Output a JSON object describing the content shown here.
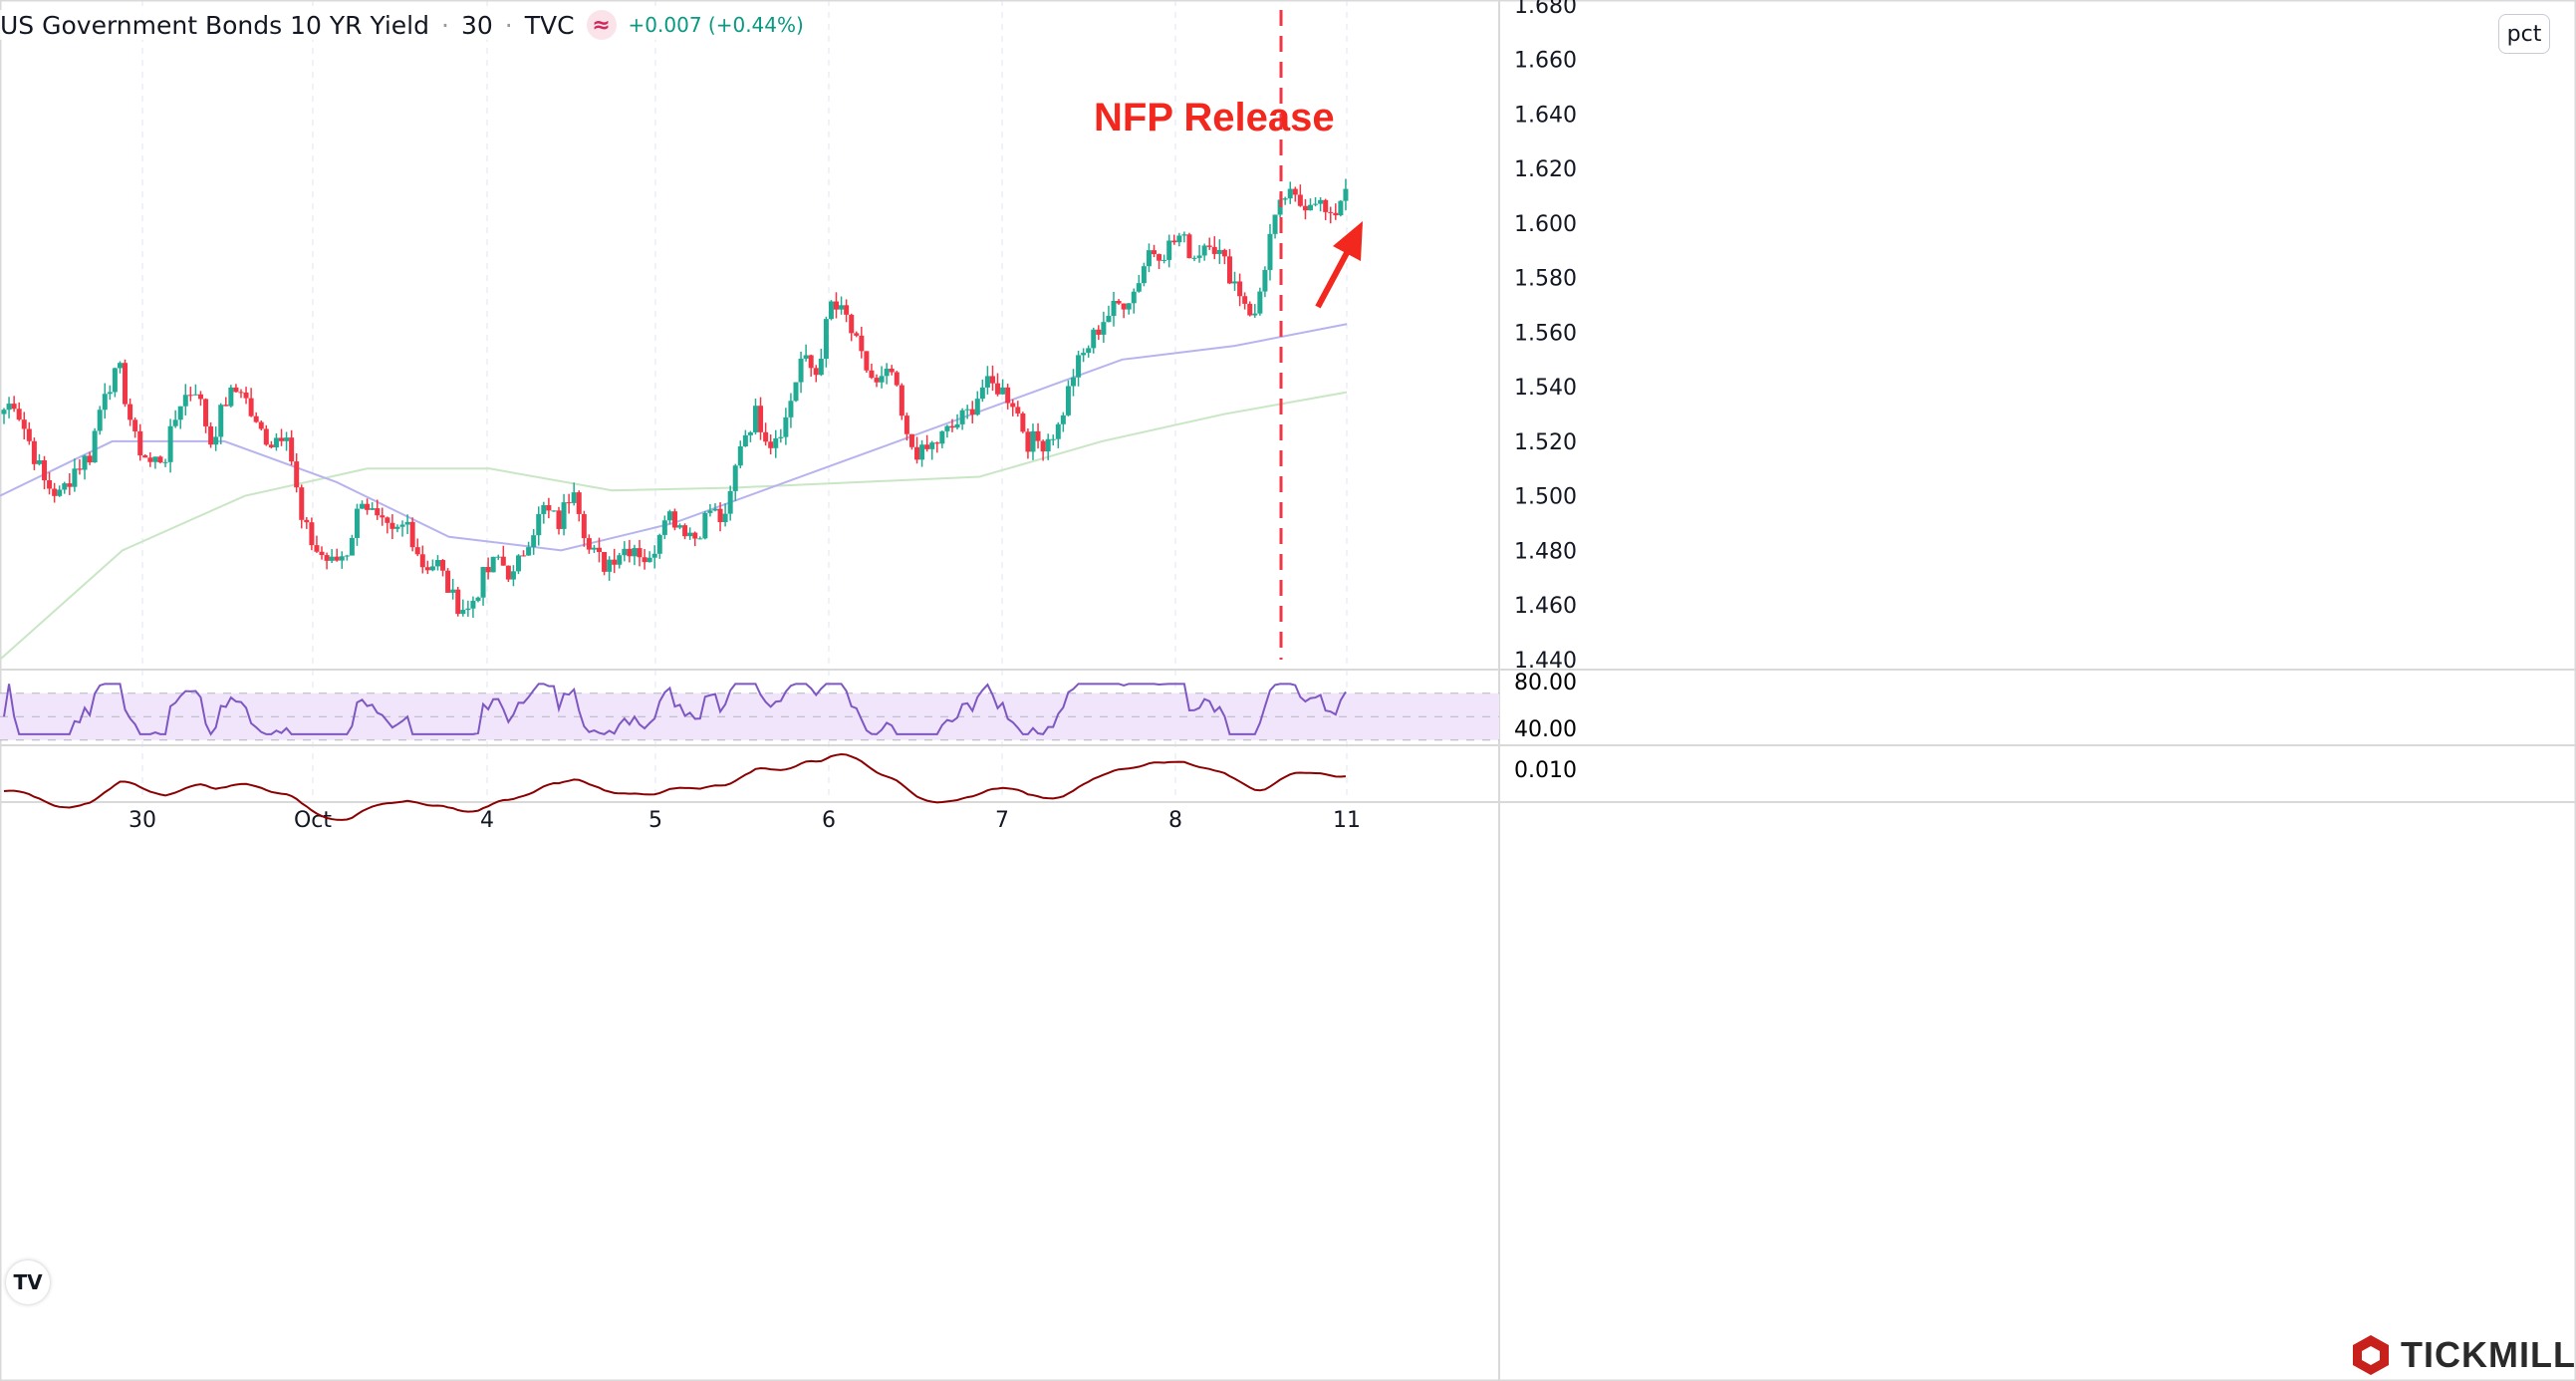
{
  "header": {
    "symbol": "US Government Bonds 10 YR Yield",
    "interval": "30",
    "exchange": "TVC",
    "change": "+0.007 (+0.44%)",
    "indicator_icon": "approx-equal-icon"
  },
  "scale_unit": "pct",
  "annotation": {
    "label": "NFP Release",
    "color": "#f2271d"
  },
  "brand": "TICKMILL",
  "colors": {
    "up": "#22ab94",
    "down": "#f23645",
    "ma_fast": "#b7b3f0",
    "ma_slow": "#c9e6c5",
    "rsi": "#7e57c2",
    "rsi_band": "#f1e5fb",
    "macd": "#8b0000"
  },
  "chart_data": {
    "type": "candlestick",
    "y_ticks": [
      "1.680",
      "1.660",
      "1.640",
      "1.620",
      "1.600",
      "1.580",
      "1.560",
      "1.540",
      "1.520",
      "1.500",
      "1.480",
      "1.460",
      "1.440"
    ],
    "ylim": [
      1.44,
      1.68
    ],
    "x_ticks": [
      "30",
      "Oct",
      "4",
      "5",
      "6",
      "7",
      "8",
      "11"
    ],
    "closes": [
      1.53,
      1.535,
      1.52,
      1.505,
      1.5,
      1.51,
      1.515,
      1.54,
      1.545,
      1.52,
      1.512,
      1.515,
      1.535,
      1.54,
      1.52,
      1.535,
      1.54,
      1.525,
      1.52,
      1.525,
      1.49,
      1.48,
      1.475,
      1.48,
      1.5,
      1.49,
      1.485,
      1.49,
      1.475,
      1.475,
      1.462,
      1.458,
      1.47,
      1.477,
      1.47,
      1.485,
      1.495,
      1.49,
      1.505,
      1.48,
      1.475,
      1.48,
      1.482,
      1.475,
      1.495,
      1.49,
      1.485,
      1.495,
      1.49,
      1.52,
      1.53,
      1.52,
      1.528,
      1.55,
      1.545,
      1.57,
      1.565,
      1.55,
      1.54,
      1.545,
      1.52,
      1.515,
      1.52,
      1.525,
      1.53,
      1.54,
      1.54,
      1.535,
      1.52,
      1.52,
      1.525,
      1.545,
      1.555,
      1.565,
      1.57,
      1.575,
      1.59,
      1.59,
      1.595,
      1.588,
      1.595,
      1.585,
      1.575,
      1.565,
      1.595,
      1.61,
      1.607,
      1.61,
      1.6,
      1.614
    ],
    "ma_fast": [
      1.5,
      1.52,
      1.52,
      1.505,
      1.485,
      1.48,
      1.49,
      1.505,
      1.52,
      1.535,
      1.55,
      1.555,
      1.563
    ],
    "ma_slow": [
      1.44,
      1.48,
      1.5,
      1.51,
      1.51,
      1.502,
      1.503,
      1.505,
      1.507,
      1.52,
      1.53,
      1.538
    ],
    "rsi": {
      "ticks": [
        "80.00",
        "40.00"
      ],
      "upper": 70,
      "middle": 50,
      "lower": 30
    },
    "macd": {
      "ticks": [
        "0.010"
      ]
    }
  }
}
